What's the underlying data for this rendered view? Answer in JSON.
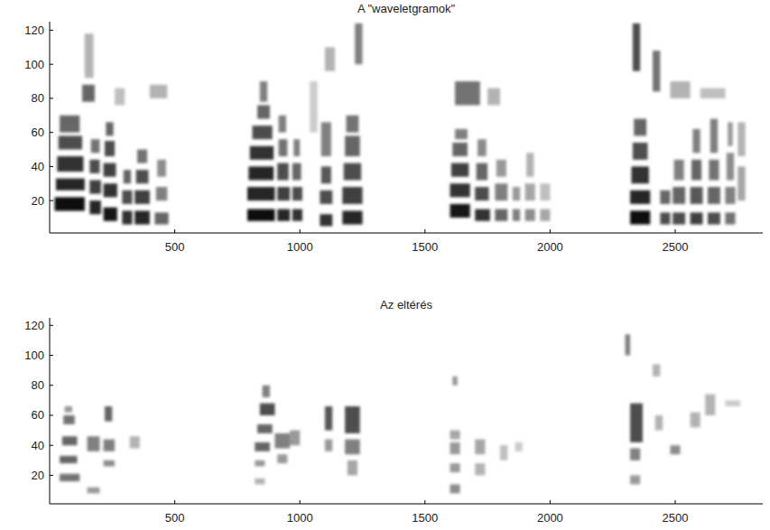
{
  "chart_data": [
    {
      "type": "heatmap",
      "title": "A \"waveletgramok\"",
      "xlim": [
        0,
        2850
      ],
      "ylim": [
        1,
        125
      ],
      "xticks": [
        500,
        1000,
        1500,
        2000,
        2500
      ],
      "yticks": [
        20,
        40,
        60,
        80,
        100,
        120
      ],
      "cells": [
        [
          20,
          140,
          14,
          22,
          0.95
        ],
        [
          25,
          140,
          26,
          33,
          0.85
        ],
        [
          30,
          135,
          37,
          46,
          0.8
        ],
        [
          35,
          130,
          50,
          58,
          0.7
        ],
        [
          40,
          120,
          60,
          70,
          0.6
        ],
        [
          160,
          205,
          12,
          20,
          0.85
        ],
        [
          160,
          205,
          24,
          32,
          0.75
        ],
        [
          160,
          200,
          36,
          44,
          0.7
        ],
        [
          165,
          200,
          48,
          56,
          0.55
        ],
        [
          215,
          270,
          8,
          16,
          0.9
        ],
        [
          215,
          270,
          22,
          30,
          0.8
        ],
        [
          215,
          265,
          34,
          42,
          0.75
        ],
        [
          220,
          260,
          46,
          55,
          0.7
        ],
        [
          225,
          255,
          58,
          66,
          0.6
        ],
        [
          290,
          330,
          6,
          14,
          0.8
        ],
        [
          290,
          330,
          18,
          26,
          0.7
        ],
        [
          295,
          325,
          30,
          38,
          0.6
        ],
        [
          340,
          400,
          6,
          14,
          0.85
        ],
        [
          340,
          400,
          18,
          26,
          0.75
        ],
        [
          345,
          395,
          30,
          38,
          0.7
        ],
        [
          350,
          390,
          42,
          50,
          0.55
        ],
        [
          420,
          475,
          6,
          13,
          0.6
        ],
        [
          425,
          470,
          20,
          28,
          0.5
        ],
        [
          430,
          465,
          34,
          44,
          0.45
        ],
        [
          130,
          180,
          78,
          88,
          0.6
        ],
        [
          140,
          175,
          92,
          118,
          0.3
        ],
        [
          260,
          300,
          76,
          86,
          0.25
        ],
        [
          400,
          470,
          80,
          88,
          0.3
        ],
        [
          790,
          900,
          8,
          15,
          0.95
        ],
        [
          790,
          900,
          20,
          28,
          0.85
        ],
        [
          795,
          895,
          32,
          40,
          0.85
        ],
        [
          800,
          895,
          44,
          52,
          0.8
        ],
        [
          810,
          890,
          56,
          64,
          0.7
        ],
        [
          830,
          880,
          68,
          76,
          0.6
        ],
        [
          840,
          870,
          78,
          90,
          0.5
        ],
        [
          910,
          960,
          8,
          15,
          0.85
        ],
        [
          910,
          960,
          20,
          28,
          0.75
        ],
        [
          910,
          955,
          32,
          42,
          0.7
        ],
        [
          915,
          950,
          46,
          56,
          0.55
        ],
        [
          915,
          945,
          60,
          70,
          0.5
        ],
        [
          970,
          1010,
          8,
          15,
          0.8
        ],
        [
          970,
          1010,
          20,
          28,
          0.7
        ],
        [
          970,
          1005,
          32,
          42,
          0.6
        ],
        [
          975,
          1000,
          46,
          56,
          0.5
        ],
        [
          1080,
          1130,
          5,
          12,
          0.8
        ],
        [
          1080,
          1130,
          18,
          26,
          0.7
        ],
        [
          1085,
          1125,
          30,
          40,
          0.65
        ],
        [
          1085,
          1125,
          46,
          66,
          0.5
        ],
        [
          1170,
          1250,
          6,
          14,
          0.85
        ],
        [
          1170,
          1250,
          18,
          28,
          0.75
        ],
        [
          1175,
          1245,
          32,
          42,
          0.7
        ],
        [
          1180,
          1240,
          46,
          58,
          0.6
        ],
        [
          1185,
          1235,
          60,
          70,
          0.55
        ],
        [
          1220,
          1250,
          100,
          124,
          0.5
        ],
        [
          1100,
          1140,
          96,
          110,
          0.3
        ],
        [
          1040,
          1070,
          60,
          90,
          0.2
        ],
        [
          1600,
          1680,
          10,
          18,
          0.9
        ],
        [
          1600,
          1680,
          22,
          30,
          0.8
        ],
        [
          1605,
          1675,
          34,
          42,
          0.75
        ],
        [
          1610,
          1670,
          46,
          54,
          0.6
        ],
        [
          1620,
          1670,
          56,
          62,
          0.5
        ],
        [
          1620,
          1720,
          76,
          90,
          0.55
        ],
        [
          1700,
          1760,
          8,
          15,
          0.8
        ],
        [
          1700,
          1755,
          20,
          28,
          0.7
        ],
        [
          1705,
          1750,
          32,
          42,
          0.6
        ],
        [
          1710,
          1745,
          46,
          56,
          0.45
        ],
        [
          1780,
          1830,
          8,
          15,
          0.6
        ],
        [
          1780,
          1830,
          20,
          30,
          0.5
        ],
        [
          1785,
          1825,
          34,
          44,
          0.4
        ],
        [
          1850,
          1880,
          8,
          15,
          0.5
        ],
        [
          1850,
          1880,
          20,
          28,
          0.4
        ],
        [
          1900,
          1940,
          8,
          15,
          0.45
        ],
        [
          1900,
          1940,
          20,
          30,
          0.35
        ],
        [
          1905,
          1935,
          34,
          48,
          0.3
        ],
        [
          1960,
          2000,
          8,
          15,
          0.35
        ],
        [
          1960,
          2000,
          20,
          30,
          0.25
        ],
        [
          1750,
          1800,
          76,
          86,
          0.3
        ],
        [
          2320,
          2400,
          6,
          14,
          0.95
        ],
        [
          2320,
          2400,
          18,
          26,
          0.85
        ],
        [
          2325,
          2395,
          30,
          40,
          0.8
        ],
        [
          2330,
          2390,
          44,
          54,
          0.7
        ],
        [
          2335,
          2385,
          58,
          68,
          0.6
        ],
        [
          2330,
          2360,
          96,
          124,
          0.7
        ],
        [
          2410,
          2440,
          84,
          108,
          0.55
        ],
        [
          2440,
          2480,
          6,
          13,
          0.7
        ],
        [
          2440,
          2480,
          18,
          26,
          0.6
        ],
        [
          2490,
          2540,
          6,
          13,
          0.7
        ],
        [
          2490,
          2540,
          18,
          28,
          0.6
        ],
        [
          2495,
          2535,
          32,
          44,
          0.5
        ],
        [
          2560,
          2610,
          6,
          13,
          0.75
        ],
        [
          2560,
          2610,
          18,
          28,
          0.65
        ],
        [
          2565,
          2605,
          32,
          44,
          0.6
        ],
        [
          2570,
          2600,
          48,
          62,
          0.5
        ],
        [
          2630,
          2680,
          6,
          13,
          0.7
        ],
        [
          2630,
          2680,
          18,
          28,
          0.6
        ],
        [
          2635,
          2675,
          32,
          44,
          0.55
        ],
        [
          2640,
          2670,
          48,
          68,
          0.5
        ],
        [
          2700,
          2740,
          6,
          13,
          0.55
        ],
        [
          2700,
          2740,
          18,
          28,
          0.5
        ],
        [
          2705,
          2735,
          32,
          48,
          0.45
        ],
        [
          2710,
          2730,
          52,
          66,
          0.4
        ],
        [
          2750,
          2780,
          20,
          40,
          0.35
        ],
        [
          2750,
          2780,
          46,
          66,
          0.3
        ],
        [
          2480,
          2560,
          80,
          90,
          0.3
        ],
        [
          2600,
          2700,
          80,
          86,
          0.25
        ]
      ]
    },
    {
      "type": "heatmap",
      "title": "Az eltérés",
      "xlim": [
        0,
        2850
      ],
      "ylim": [
        1,
        125
      ],
      "xticks": [
        500,
        1000,
        1500,
        2000,
        2500
      ],
      "yticks": [
        20,
        40,
        60,
        80,
        100,
        120
      ],
      "cells": [
        [
          40,
          120,
          16,
          21,
          0.55
        ],
        [
          40,
          110,
          28,
          33,
          0.6
        ],
        [
          50,
          110,
          40,
          46,
          0.6
        ],
        [
          55,
          100,
          54,
          60,
          0.55
        ],
        [
          60,
          90,
          62,
          66,
          0.4
        ],
        [
          150,
          200,
          8,
          12,
          0.4
        ],
        [
          150,
          200,
          36,
          46,
          0.5
        ],
        [
          215,
          260,
          26,
          30,
          0.45
        ],
        [
          215,
          260,
          36,
          44,
          0.5
        ],
        [
          220,
          250,
          56,
          66,
          0.6
        ],
        [
          320,
          360,
          38,
          46,
          0.3
        ],
        [
          820,
          880,
          36,
          42,
          0.6
        ],
        [
          830,
          890,
          48,
          54,
          0.6
        ],
        [
          840,
          900,
          60,
          68,
          0.7
        ],
        [
          850,
          880,
          72,
          80,
          0.5
        ],
        [
          820,
          860,
          14,
          18,
          0.3
        ],
        [
          820,
          860,
          26,
          30,
          0.4
        ],
        [
          900,
          960,
          38,
          48,
          0.5
        ],
        [
          910,
          950,
          28,
          34,
          0.4
        ],
        [
          960,
          1000,
          40,
          50,
          0.4
        ],
        [
          1100,
          1130,
          50,
          66,
          0.65
        ],
        [
          1100,
          1130,
          36,
          44,
          0.4
        ],
        [
          1180,
          1240,
          48,
          66,
          0.7
        ],
        [
          1180,
          1240,
          34,
          44,
          0.5
        ],
        [
          1190,
          1230,
          20,
          30,
          0.35
        ],
        [
          1600,
          1640,
          8,
          14,
          0.45
        ],
        [
          1600,
          1640,
          22,
          28,
          0.4
        ],
        [
          1600,
          1640,
          34,
          42,
          0.4
        ],
        [
          1600,
          1640,
          44,
          50,
          0.35
        ],
        [
          1610,
          1630,
          80,
          86,
          0.4
        ],
        [
          1700,
          1740,
          20,
          28,
          0.3
        ],
        [
          1700,
          1740,
          34,
          44,
          0.35
        ],
        [
          1800,
          1830,
          30,
          40,
          0.25
        ],
        [
          1860,
          1890,
          36,
          42,
          0.2
        ],
        [
          2300,
          2320,
          100,
          114,
          0.5
        ],
        [
          2320,
          2370,
          42,
          68,
          0.7
        ],
        [
          2320,
          2360,
          30,
          38,
          0.5
        ],
        [
          2320,
          2360,
          14,
          20,
          0.4
        ],
        [
          2410,
          2440,
          86,
          94,
          0.3
        ],
        [
          2480,
          2520,
          34,
          40,
          0.45
        ],
        [
          2420,
          2450,
          50,
          60,
          0.3
        ],
        [
          2560,
          2600,
          52,
          62,
          0.3
        ],
        [
          2620,
          2660,
          60,
          74,
          0.3
        ],
        [
          2700,
          2760,
          66,
          70,
          0.2
        ]
      ]
    }
  ]
}
